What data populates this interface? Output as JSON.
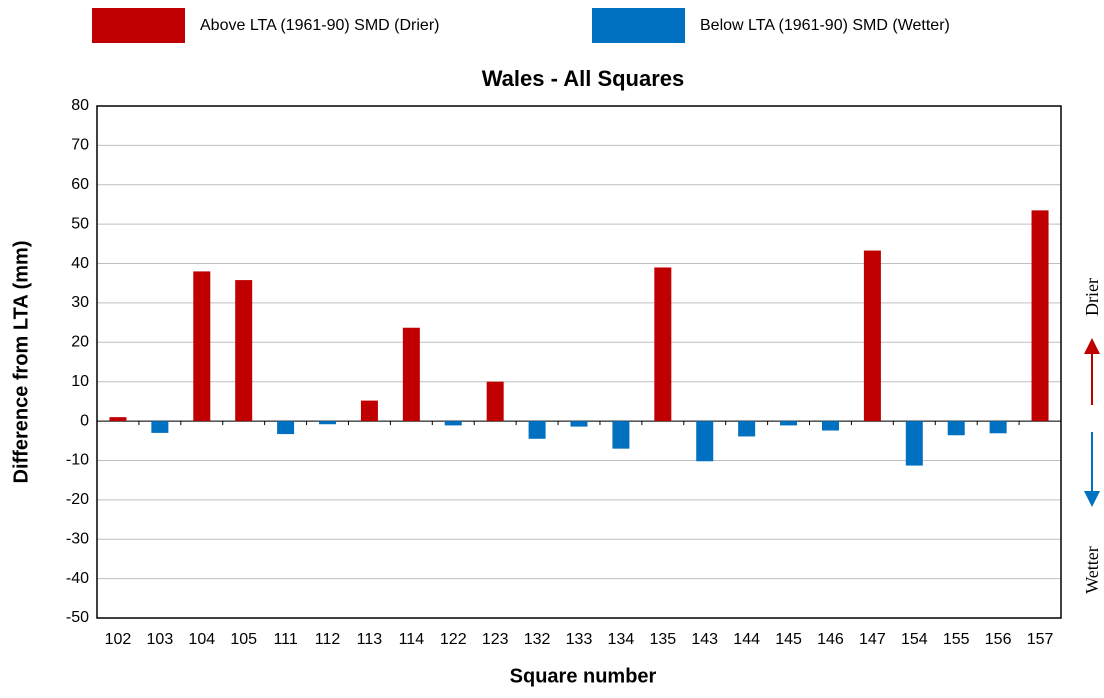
{
  "chart_data": {
    "type": "bar",
    "title": "Wales - All Squares",
    "x_label": "Square number",
    "y_label": "Difference from LTA (mm)",
    "annotations": [
      "Drier",
      "Wetter"
    ],
    "categories": [
      "102",
      "103",
      "104",
      "105",
      "111",
      "112",
      "113",
      "114",
      "122",
      "123",
      "132",
      "133",
      "134",
      "135",
      "143",
      "144",
      "145",
      "146",
      "147",
      "154",
      "155",
      "156",
      "157"
    ],
    "series": [
      {
        "name": "Above LTA (1961-90)  SMD (Drier)",
        "color": "#c00000",
        "values": [
          1,
          null,
          38,
          35.8,
          null,
          null,
          5.2,
          23.7,
          null,
          10,
          null,
          null,
          null,
          39,
          null,
          null,
          null,
          null,
          43.3,
          null,
          null,
          null,
          53.5
        ]
      },
      {
        "name": "Below LTA (1961-90) SMD (Wetter)",
        "color": "#0070c0",
        "values": [
          null,
          -3,
          null,
          null,
          -3.3,
          -0.8,
          null,
          null,
          -1.1,
          null,
          -4.5,
          -1.4,
          -7,
          null,
          -10.2,
          -3.9,
          -1.1,
          -2.4,
          null,
          -11.3,
          -3.6,
          -3.1,
          null
        ]
      }
    ],
    "ylim": [
      -50,
      80
    ],
    "yticks": [
      -50,
      -40,
      -30,
      -20,
      -10,
      0,
      10,
      20,
      30,
      40,
      50,
      60,
      70,
      80
    ],
    "grid": true
  }
}
